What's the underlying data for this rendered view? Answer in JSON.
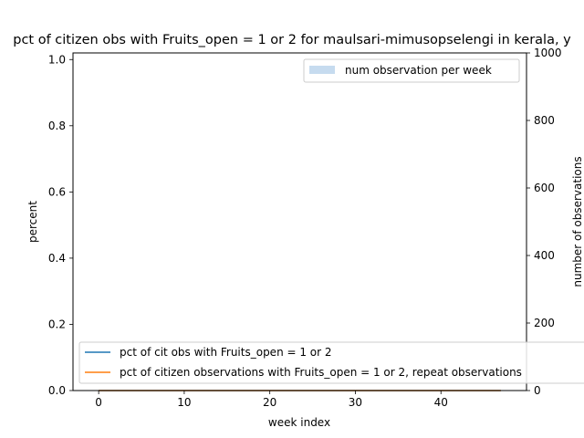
{
  "chart_data": {
    "type": "line",
    "title": "pct of citizen obs with Fruits_open = 1 or 2 for maulsari-mimusopselengi in kerala, y",
    "xlabel": "week index",
    "ylabel_left": "percent",
    "ylabel_right": "number of observations",
    "xlim": [
      -3,
      50
    ],
    "ylim_left": [
      0,
      1.02
    ],
    "ylim_right": [
      0,
      1000
    ],
    "xticks": [
      0,
      10,
      20,
      30,
      40
    ],
    "yticks_left": [
      0.0,
      0.2,
      0.4,
      0.6,
      0.8,
      1.0
    ],
    "yticks_right": [
      0,
      200,
      400,
      600,
      800,
      1000
    ],
    "xtick_labels": [
      "0",
      "10",
      "20",
      "30",
      "40"
    ],
    "yticks_left_labels": [
      "0.0",
      "0.2",
      "0.4",
      "0.6",
      "0.8",
      "1.0"
    ],
    "yticks_right_labels": [
      "0",
      "200",
      "400",
      "600",
      "800",
      "1000"
    ],
    "grid": false,
    "series": [
      {
        "name": "pct of cit obs with Fruits_open = 1 or 2",
        "color": "#1f77b4",
        "axis": "left",
        "x": [
          0,
          47
        ],
        "y": [
          0,
          0
        ]
      },
      {
        "name": "pct of citizen observations with Fruits_open = 1 or 2, repeat observations",
        "color": "#ff7f0e",
        "axis": "left",
        "x": [
          0,
          47
        ],
        "y": [
          0,
          0
        ]
      }
    ],
    "bars": {
      "name": "num observation per week",
      "color": "#c6dbef",
      "axis": "right",
      "values": []
    },
    "legend_lines_placement": "lower-left",
    "legend_bars_placement": "upper-right"
  }
}
